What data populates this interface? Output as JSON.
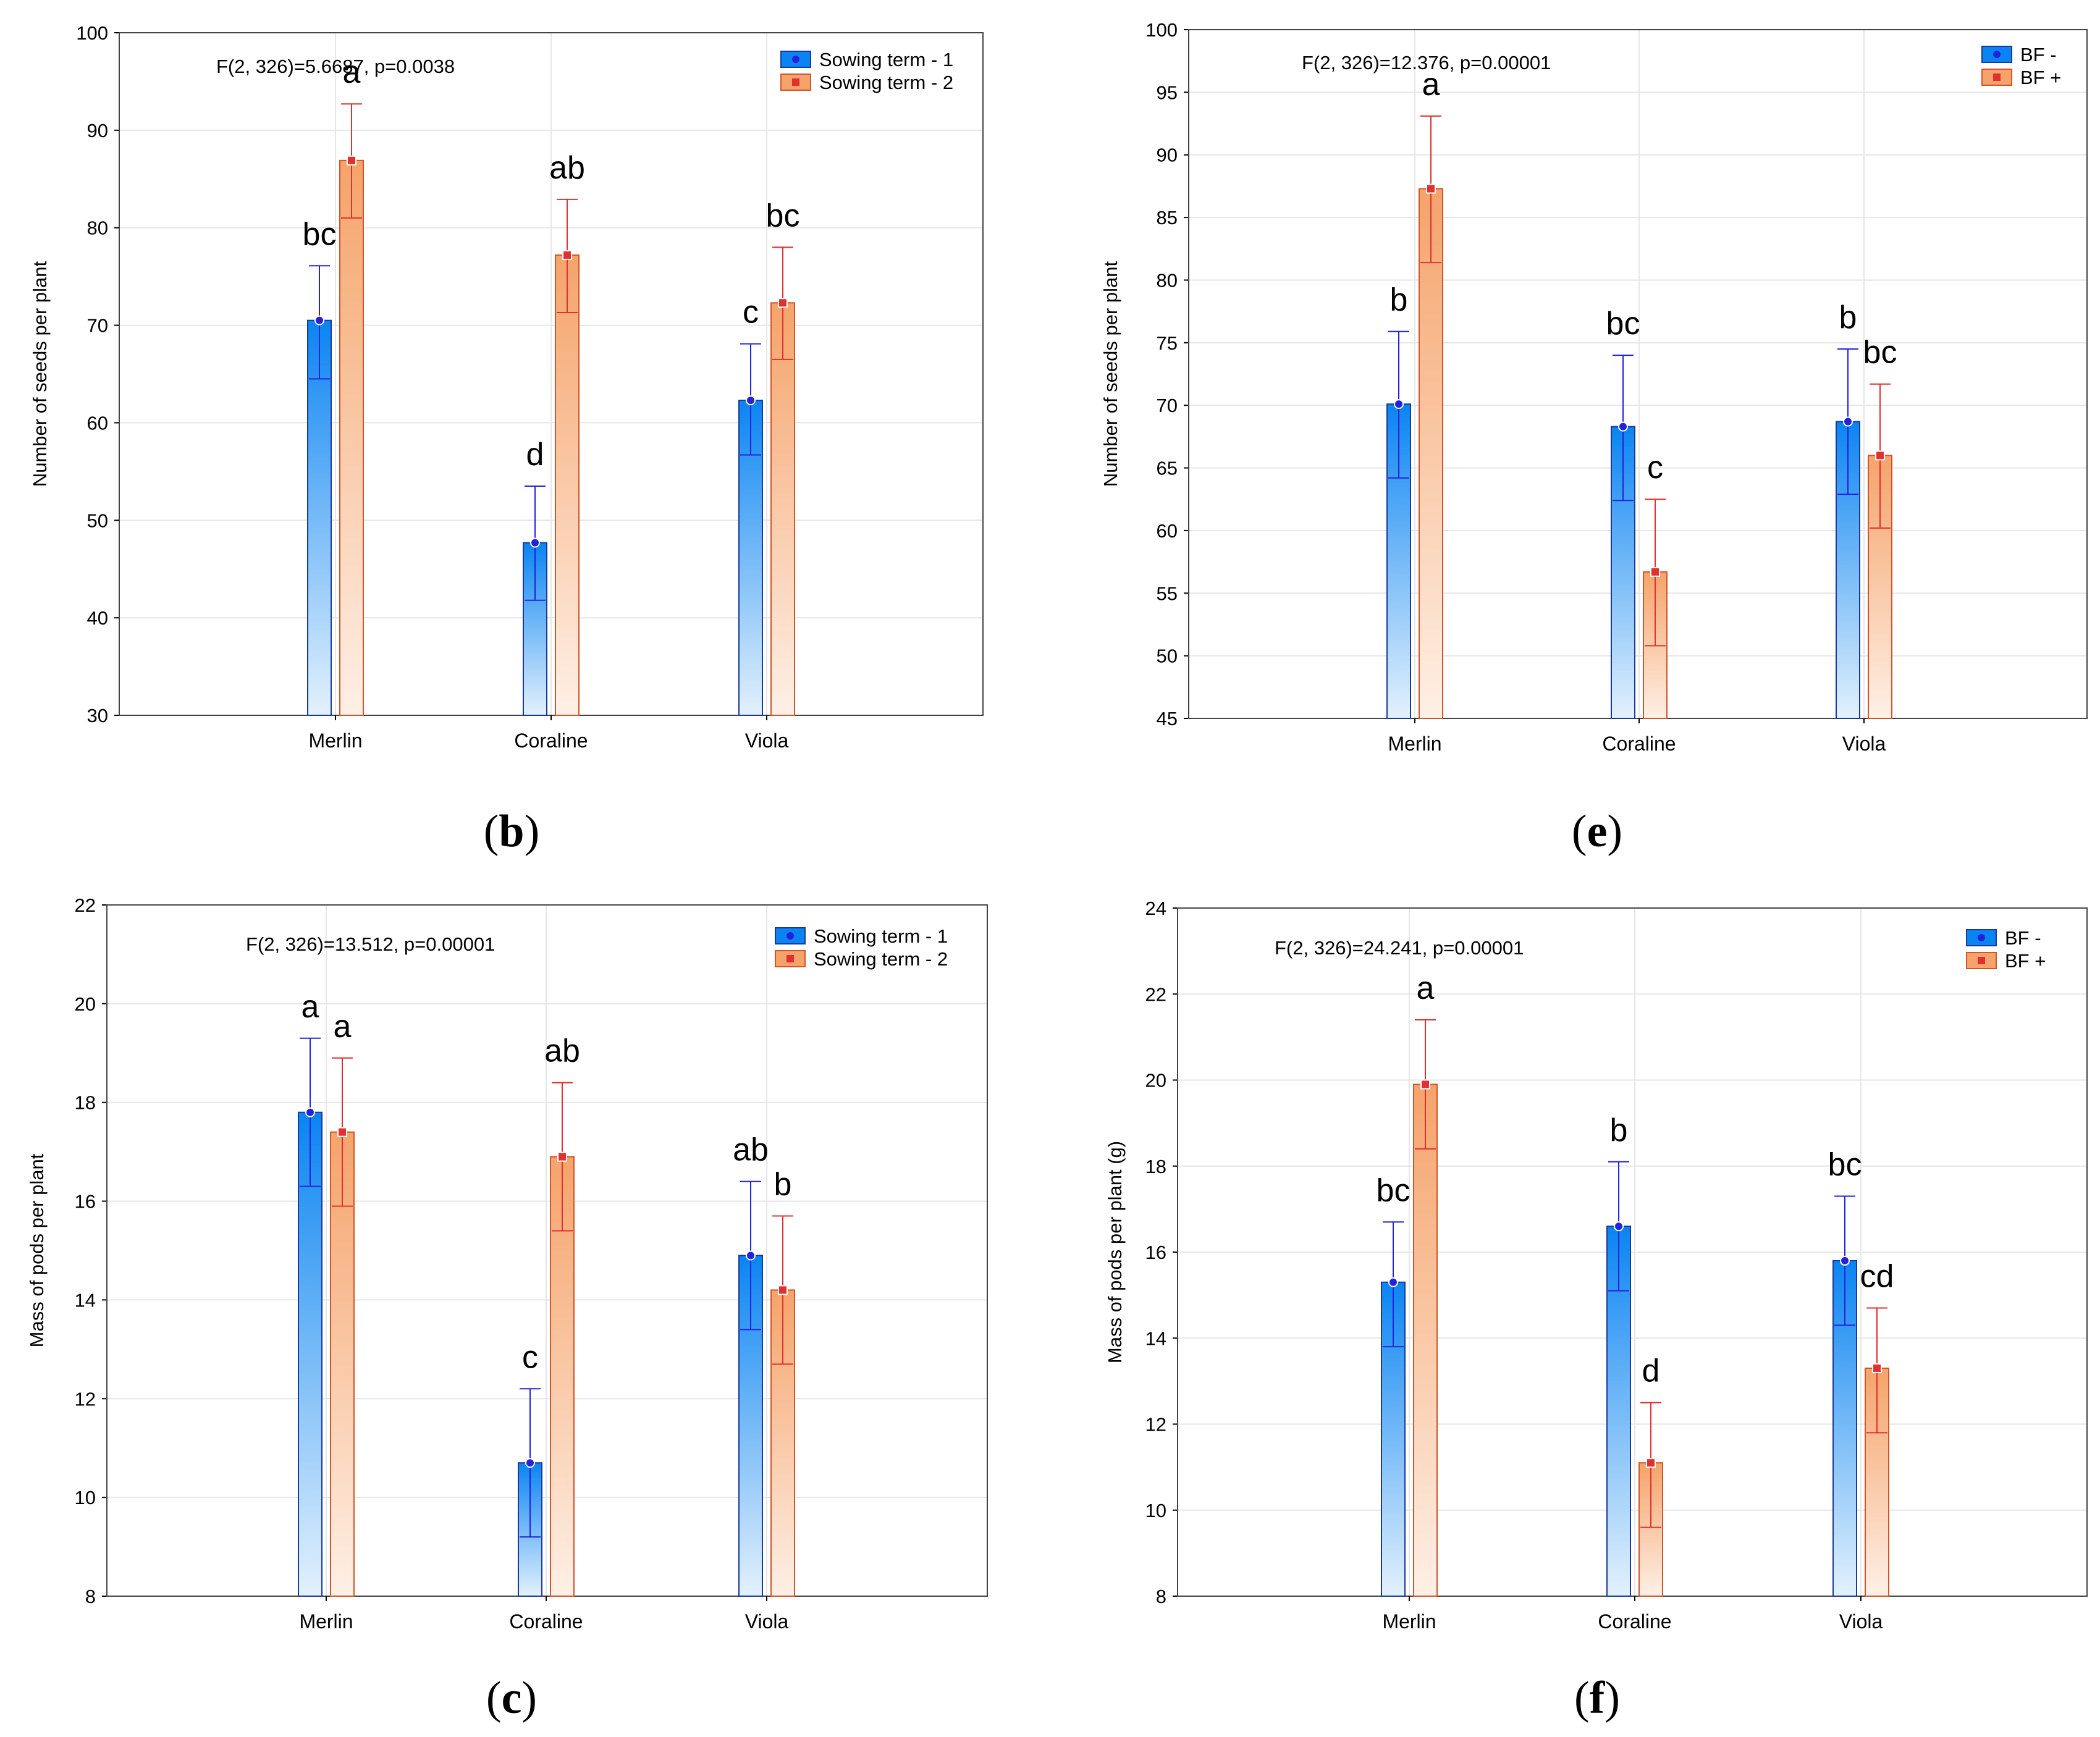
{
  "figure": {
    "panel_labels": [
      "b",
      "e",
      "c",
      "f"
    ]
  },
  "colors": {
    "series1_dark": "#0a84f2",
    "series1_light": "#e3f1fd",
    "series1_stroke": "#1a3a9a",
    "series1_error": "#2222dd",
    "series2_dark": "#f5a36a",
    "series2_light": "#fef0e6",
    "series2_stroke": "#d0562a",
    "series2_error": "#e03030",
    "grid": "#e6e6e6"
  },
  "chart_data": [
    {
      "panel": "b",
      "type": "bar",
      "title": "F(2, 326)=5.6687, p=0.0038",
      "xlabel": "",
      "ylabel": "Number of seeds per plant",
      "ylim": [
        30,
        100
      ],
      "yticks": [
        "30",
        "40",
        "50",
        "60",
        "70",
        "80",
        "90",
        "100"
      ],
      "grid": true,
      "legend_position": "top-right",
      "categories": [
        "Merlin",
        "Coraline",
        "Viola"
      ],
      "series": [
        {
          "name": "Sowing term - 1",
          "values": [
            70.5,
            47.7,
            62.3
          ],
          "err_low": [
            64.5,
            41.8,
            56.7
          ],
          "err_high": [
            76.1,
            53.5,
            68.1
          ],
          "labels": [
            "bc",
            "d",
            "c"
          ]
        },
        {
          "name": "Sowing term - 2",
          "values": [
            86.9,
            77.2,
            72.3
          ],
          "err_low": [
            81.0,
            71.3,
            66.5
          ],
          "err_high": [
            92.7,
            82.9,
            78.0
          ],
          "labels": [
            "a",
            "ab",
            "bc"
          ]
        }
      ]
    },
    {
      "panel": "e",
      "type": "bar",
      "title": "F(2, 326)=12.376, p=0.00001",
      "xlabel": "",
      "ylabel": "Number of seeds per plant",
      "ylim": [
        45,
        100
      ],
      "yticks": [
        "45",
        "50",
        "55",
        "60",
        "65",
        "70",
        "75",
        "80",
        "85",
        "90",
        "95",
        "100"
      ],
      "grid": true,
      "legend_position": "top-right",
      "categories": [
        "Merlin",
        "Coraline",
        "Viola"
      ],
      "series": [
        {
          "name": "BF  -",
          "values": [
            70.1,
            68.3,
            68.7
          ],
          "err_low": [
            64.2,
            62.4,
            62.9
          ],
          "err_high": [
            75.9,
            74.0,
            74.5
          ],
          "labels": [
            "b",
            "bc",
            "b"
          ]
        },
        {
          "name": "BF  +",
          "values": [
            87.3,
            56.7,
            66.0
          ],
          "err_low": [
            81.4,
            50.8,
            60.2
          ],
          "err_high": [
            93.1,
            62.5,
            71.7
          ],
          "labels": [
            "a",
            "c",
            "bc"
          ]
        }
      ]
    },
    {
      "panel": "c",
      "type": "bar",
      "title": "F(2, 326)=13.512, p=0.00001",
      "xlabel": "",
      "ylabel": "Mass of pods per plant",
      "ylim": [
        8,
        22
      ],
      "yticks": [
        "8",
        "10",
        "12",
        "14",
        "16",
        "18",
        "20",
        "22"
      ],
      "grid": true,
      "legend_position": "top-right",
      "categories": [
        "Merlin",
        "Coraline",
        "Viola"
      ],
      "series": [
        {
          "name": "Sowing term - 1",
          "values": [
            17.8,
            10.7,
            14.9
          ],
          "err_low": [
            16.3,
            9.2,
            13.4
          ],
          "err_high": [
            19.3,
            12.2,
            16.4
          ],
          "labels": [
            "a",
            "c",
            "ab"
          ]
        },
        {
          "name": "Sowing term - 2",
          "values": [
            17.4,
            16.9,
            14.2
          ],
          "err_low": [
            15.9,
            15.4,
            12.7
          ],
          "err_high": [
            18.9,
            18.4,
            15.7
          ],
          "labels": [
            "a",
            "ab",
            "b"
          ]
        }
      ]
    },
    {
      "panel": "f",
      "type": "bar",
      "title": "F(2, 326)=24.241, p=0.00001",
      "xlabel": "",
      "ylabel": "Mass of pods per plant (g)",
      "ylim": [
        8,
        24
      ],
      "yticks": [
        "8",
        "10",
        "12",
        "14",
        "16",
        "18",
        "20",
        "22",
        "24"
      ],
      "grid": true,
      "legend_position": "top-right",
      "categories": [
        "Merlin",
        "Coraline",
        "Viola"
      ],
      "series": [
        {
          "name": "BF -",
          "values": [
            15.3,
            16.6,
            15.8
          ],
          "err_low": [
            13.8,
            15.1,
            14.3
          ],
          "err_high": [
            16.7,
            18.1,
            17.3
          ],
          "labels": [
            "bc",
            "b",
            "bc"
          ]
        },
        {
          "name": "BF +",
          "values": [
            19.9,
            11.1,
            13.3
          ],
          "err_low": [
            18.4,
            9.6,
            11.8
          ],
          "err_high": [
            21.4,
            12.5,
            14.7
          ],
          "labels": [
            "a",
            "d",
            "cd"
          ]
        }
      ]
    }
  ]
}
